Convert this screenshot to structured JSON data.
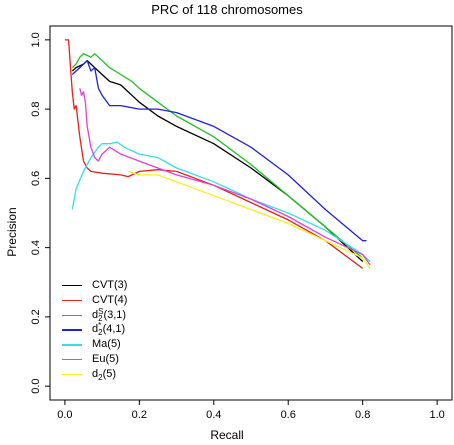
{
  "chart_data": {
    "type": "line",
    "title": "PRC of 118 chromosomes",
    "xlabel": "Recall",
    "ylabel": "Precision",
    "xlim": [
      0,
      1
    ],
    "ylim": [
      0,
      1
    ],
    "xticks": [
      "0.0",
      "0.2",
      "0.4",
      "0.6",
      "0.8",
      "1.0"
    ],
    "yticks": [
      "0.0",
      "0.2",
      "0.4",
      "0.6",
      "0.8",
      "1.0"
    ],
    "legend_position": "bottom-left",
    "series": [
      {
        "name": "CVT(3)",
        "color": "#000000",
        "x": [
          0.02,
          0.03,
          0.05,
          0.06,
          0.08,
          0.1,
          0.12,
          0.15,
          0.18,
          0.2,
          0.25,
          0.3,
          0.4,
          0.5,
          0.6,
          0.7,
          0.8
        ],
        "y": [
          0.91,
          0.92,
          0.93,
          0.94,
          0.92,
          0.9,
          0.88,
          0.87,
          0.84,
          0.82,
          0.78,
          0.75,
          0.7,
          0.63,
          0.55,
          0.46,
          0.36
        ]
      },
      {
        "name": "CVT(4)",
        "color": "#e8201a",
        "x": [
          0.0,
          0.01,
          0.015,
          0.02,
          0.025,
          0.03,
          0.04,
          0.05,
          0.06,
          0.07,
          0.1,
          0.15,
          0.17,
          0.2,
          0.25,
          0.3,
          0.4,
          0.5,
          0.6,
          0.7,
          0.8
        ],
        "y": [
          1.0,
          1.0,
          0.92,
          0.85,
          0.8,
          0.81,
          0.72,
          0.65,
          0.63,
          0.62,
          0.615,
          0.61,
          0.605,
          0.62,
          0.625,
          0.62,
          0.58,
          0.53,
          0.48,
          0.42,
          0.34
        ]
      },
      {
        "name": "d2S(3,1)",
        "color": "#1fc21f",
        "x": [
          0.02,
          0.03,
          0.04,
          0.05,
          0.06,
          0.07,
          0.08,
          0.1,
          0.12,
          0.15,
          0.18,
          0.2,
          0.25,
          0.3,
          0.4,
          0.5,
          0.6,
          0.7,
          0.8
        ],
        "y": [
          0.92,
          0.93,
          0.95,
          0.96,
          0.955,
          0.95,
          0.96,
          0.94,
          0.92,
          0.9,
          0.88,
          0.86,
          0.82,
          0.78,
          0.72,
          0.64,
          0.55,
          0.46,
          0.37
        ]
      },
      {
        "name": "d2*(4,1)",
        "color": "#2020dd",
        "x": [
          0.02,
          0.03,
          0.04,
          0.05,
          0.06,
          0.07,
          0.08,
          0.09,
          0.1,
          0.12,
          0.15,
          0.2,
          0.25,
          0.3,
          0.4,
          0.5,
          0.6,
          0.7,
          0.8,
          0.81
        ],
        "y": [
          0.9,
          0.91,
          0.92,
          0.93,
          0.94,
          0.91,
          0.92,
          0.86,
          0.84,
          0.81,
          0.81,
          0.8,
          0.8,
          0.79,
          0.75,
          0.69,
          0.61,
          0.51,
          0.42,
          0.42
        ]
      },
      {
        "name": "Ma(5)",
        "color": "#33e0e0",
        "x": [
          0.02,
          0.03,
          0.05,
          0.07,
          0.09,
          0.1,
          0.12,
          0.14,
          0.16,
          0.2,
          0.25,
          0.3,
          0.4,
          0.5,
          0.6,
          0.7,
          0.8,
          0.82
        ],
        "y": [
          0.51,
          0.57,
          0.62,
          0.66,
          0.69,
          0.7,
          0.7,
          0.705,
          0.69,
          0.67,
          0.66,
          0.63,
          0.59,
          0.54,
          0.5,
          0.45,
          0.38,
          0.36
        ]
      },
      {
        "name": "Eu(5)",
        "color": "#e23fd6",
        "x": [
          0.04,
          0.045,
          0.05,
          0.055,
          0.06,
          0.07,
          0.08,
          0.09,
          0.1,
          0.12,
          0.15,
          0.2,
          0.25,
          0.3,
          0.4,
          0.5,
          0.6,
          0.7,
          0.8,
          0.82
        ],
        "y": [
          0.86,
          0.84,
          0.85,
          0.82,
          0.75,
          0.69,
          0.66,
          0.65,
          0.67,
          0.69,
          0.67,
          0.65,
          0.63,
          0.61,
          0.58,
          0.54,
          0.49,
          0.43,
          0.38,
          0.35
        ]
      },
      {
        "name": "d2(5)",
        "color": "#f5f01a",
        "x": [
          0.17,
          0.2,
          0.25,
          0.3,
          0.4,
          0.5,
          0.6,
          0.7,
          0.8,
          0.82
        ],
        "y": [
          0.62,
          0.61,
          0.61,
          0.59,
          0.55,
          0.51,
          0.47,
          0.42,
          0.37,
          0.34
        ]
      }
    ]
  },
  "legend": {
    "items": [
      {
        "main": "CVT(3)",
        "color": "#000000"
      },
      {
        "main": "CVT(4)",
        "color": "#e8201a"
      },
      {
        "main": "d",
        "sub": "2",
        "sup": "S",
        "rest": "(3,1)",
        "color": "#1fc21f"
      },
      {
        "main": "d",
        "sub": "2",
        "sup": "*",
        "rest": "(4,1)",
        "color": "#2020dd"
      },
      {
        "main": "Ma(5)",
        "color": "#33e0e0"
      },
      {
        "main": "Eu(5)",
        "color": "#e23fd6"
      },
      {
        "main": "d",
        "sub": "2",
        "rest": "(5)",
        "color": "#f5f01a"
      }
    ]
  }
}
